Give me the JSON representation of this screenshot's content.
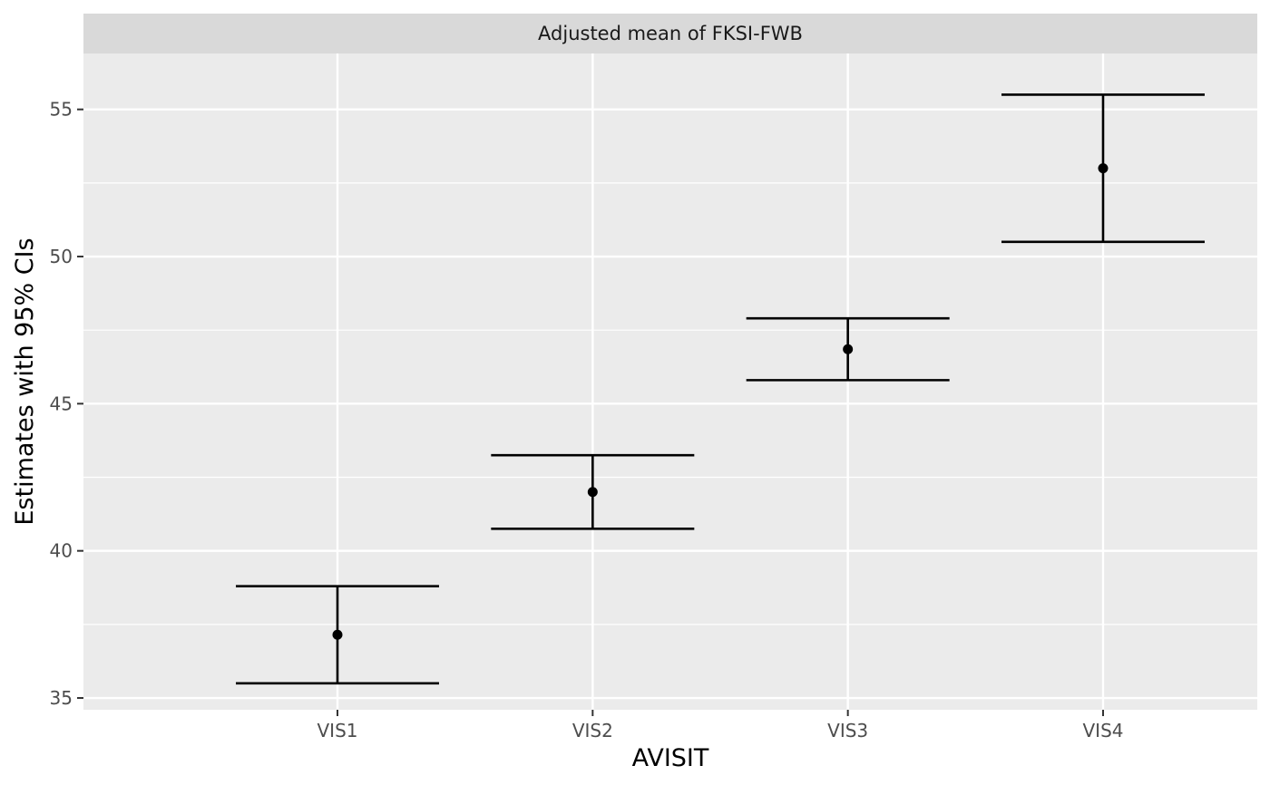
{
  "chart_data": {
    "type": "errorbar",
    "facet_title": "Adjusted mean of FKSI-FWB",
    "xlabel": "AVISIT",
    "ylabel": "Estimates with 95% CIs",
    "categories": [
      "VIS1",
      "VIS2",
      "VIS3",
      "VIS4"
    ],
    "estimates": [
      37.15,
      42.0,
      46.85,
      53.0
    ],
    "lower": [
      35.5,
      40.75,
      45.8,
      50.5
    ],
    "upper": [
      38.8,
      43.25,
      47.9,
      55.5
    ],
    "ylim": [
      34.6,
      56.9
    ],
    "yticks": [
      35,
      40,
      45,
      50,
      55
    ],
    "grid": true,
    "colors": {
      "panel_background": "#ebebeb",
      "strip_background": "#d9d9d9",
      "gridline": "#ffffff",
      "marks": "#000000",
      "tick_label": "#4d4d4d"
    }
  }
}
